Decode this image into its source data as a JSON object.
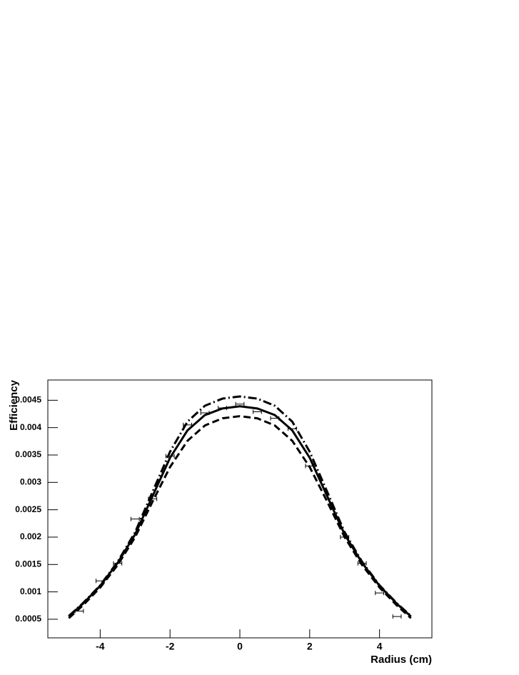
{
  "chart_data": {
    "type": "line",
    "x_label": "Radius (cm)",
    "y_label": "Efficiency",
    "x": [
      -4.9,
      -4.5,
      -4,
      -3.5,
      -3,
      -2.5,
      -2,
      -1.5,
      -1,
      -0.5,
      0,
      0.5,
      1,
      1.5,
      2,
      2.5,
      3,
      3.5,
      4,
      4.5,
      4.9
    ],
    "series": [
      {
        "color": "#000000",
        "dash": "solid",
        "values": [
          0.00055,
          0.00078,
          0.00111,
          0.00153,
          0.00205,
          0.00275,
          0.00345,
          0.00395,
          0.00423,
          0.00435,
          0.00439,
          0.00435,
          0.00423,
          0.00395,
          0.00345,
          0.00275,
          0.00205,
          0.00153,
          0.00111,
          0.00078,
          0.00055
        ]
      },
      {
        "color": "#000000",
        "dash": "dashed",
        "values": [
          0.00052,
          0.00075,
          0.00108,
          0.00149,
          0.002,
          0.00265,
          0.00328,
          0.00376,
          0.00404,
          0.00417,
          0.00421,
          0.00417,
          0.00404,
          0.00376,
          0.00328,
          0.00265,
          0.002,
          0.00149,
          0.00108,
          0.00075,
          0.00052
        ]
      },
      {
        "color": "#000000",
        "dash": "dashdot",
        "values": [
          0.00056,
          0.00079,
          0.00112,
          0.00155,
          0.00209,
          0.00283,
          0.00356,
          0.00411,
          0.0044,
          0.00453,
          0.00457,
          0.00453,
          0.0044,
          0.00411,
          0.00356,
          0.00283,
          0.00209,
          0.00155,
          0.00112,
          0.00079,
          0.00056
        ]
      }
    ],
    "points": {
      "color": "#000000",
      "x": [
        -4.6,
        -4,
        -3.5,
        -3,
        -2.5,
        -2,
        -1.5,
        -1,
        -0.5,
        0,
        0.5,
        1,
        1.5,
        2,
        3,
        3.5,
        4,
        4.5
      ],
      "values": [
        0.00065,
        0.0012,
        0.00152,
        0.00233,
        0.0027,
        0.00348,
        0.00405,
        0.00427,
        0.00436,
        0.00443,
        0.00429,
        0.00417,
        0.00398,
        0.0033,
        0.002,
        0.00152,
        0.00098,
        0.00055
      ],
      "xerr": [
        0.12,
        0.12,
        0.12,
        0.12,
        0.12,
        0.12,
        0.12,
        0.12,
        0.12,
        0.12,
        0.12,
        0.12,
        0.12,
        0.12,
        0.12,
        0.12,
        0.12,
        0.12
      ]
    },
    "xlim": [
      -5.5,
      5.5
    ],
    "ylim": [
      0.00016,
      0.00487
    ],
    "xticks": [
      -4,
      -2,
      0,
      2,
      4
    ],
    "yticks": [
      0.0005,
      0.001,
      0.0015,
      0.002,
      0.0025,
      0.003,
      0.0035,
      0.004,
      0.0045
    ]
  }
}
